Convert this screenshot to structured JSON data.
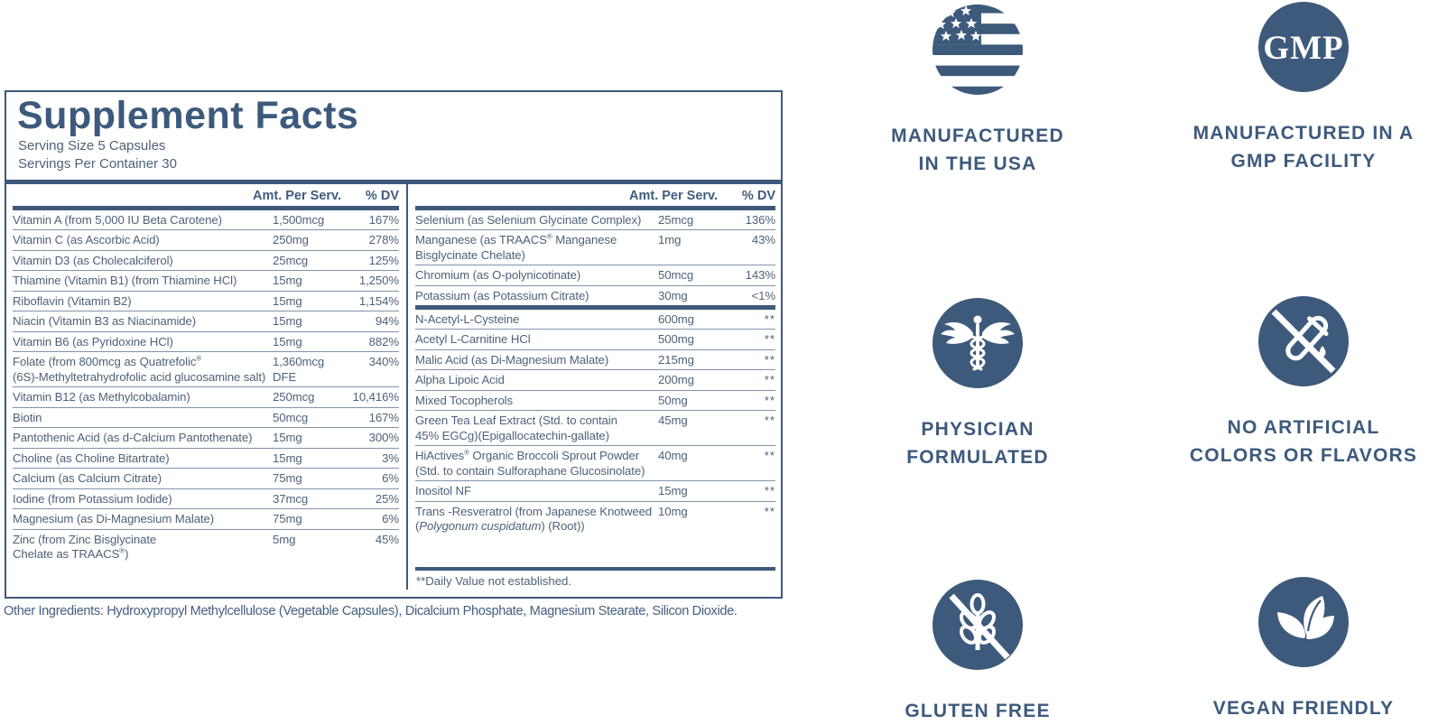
{
  "colors": {
    "navy": "#3d5a7c",
    "row_text": "#4d6278",
    "divider_line": "#8094a8"
  },
  "panel": {
    "title": "Supplement Facts",
    "serving_size": "Serving Size 5 Capsules",
    "servings_per_container": "Servings Per Container 30",
    "col_headers": {
      "amt": "Amt. Per Serv.",
      "dv": "% DV"
    },
    "left_rows": [
      {
        "name": "Vitamin A (from 5,000 IU Beta Carotene)",
        "amt": "1,500mcg",
        "dv": "167%"
      },
      {
        "name": "Vitamin C (as Ascorbic Acid)",
        "amt": "250mg",
        "dv": "278%"
      },
      {
        "name": "Vitamin D3 (as Cholecalciferol)",
        "amt": "25mcg",
        "dv": "125%"
      },
      {
        "name": "Thiamine (Vitamin B1) (from Thiamine HCl)",
        "amt": "15mg",
        "dv": "1,250%"
      },
      {
        "name": "Riboflavin (Vitamin B2)",
        "amt": "15mg",
        "dv": "1,154%"
      },
      {
        "name": "Niacin (Vitamin B3 as Niacinamide)",
        "amt": "15mg",
        "dv": "94%"
      },
      {
        "name": "Vitamin B6 (as Pyridoxine HCl)",
        "amt": "15mg",
        "dv": "882%"
      },
      {
        "name": "Folate (from 800mcg as Quatrefolic®",
        "name2": "(6S)-Methyltetrahydrofolic acid glucosamine salt)",
        "amt": "1,360mcg DFE",
        "dv": "340%"
      },
      {
        "name": "Vitamin B12 (as Methylcobalamin)",
        "amt": "250mcg",
        "dv": "10,416%"
      },
      {
        "name": "Biotin",
        "amt": "50mcg",
        "dv": "167%"
      },
      {
        "name": "Pantothenic Acid (as d-Calcium Pantothenate)",
        "amt": "15mg",
        "dv": "300%"
      },
      {
        "name": "Choline (as Choline Bitartrate)",
        "amt": "15mg",
        "dv": "3%"
      },
      {
        "name": "Calcium (as Calcium Citrate)",
        "amt": "75mg",
        "dv": "6%"
      },
      {
        "name": "Iodine (from Potassium Iodide)",
        "amt": "37mcg",
        "dv": "25%"
      },
      {
        "name": "Magnesium (as Di-Magnesium Malate)",
        "amt": "75mg",
        "dv": "6%"
      },
      {
        "name": "Zinc (from Zinc Bisglycinate",
        "name2": "Chelate as TRAACS®)",
        "amt": "5mg",
        "dv": "45%"
      }
    ],
    "right_rows_1": [
      {
        "name": "Selenium (as Selenium Glycinate Complex)",
        "amt": "25mcg",
        "dv": "136%"
      },
      {
        "name": "Manganese (as TRAACS® Manganese",
        "name2": "Bisglycinate Chelate)",
        "amt": "1mg",
        "dv": "43%"
      },
      {
        "name": "Chromium (as O-polynicotinate)",
        "amt": "50mcg",
        "dv": "143%"
      },
      {
        "name": "Potassium (as Potassium Citrate)",
        "amt": "30mg",
        "dv": "<1%"
      }
    ],
    "right_rows_2": [
      {
        "name": "N-Acetyl-L-Cysteine",
        "amt": "600mg",
        "dv": "**"
      },
      {
        "name": "Acetyl L-Carnitine HCl",
        "amt": "500mg",
        "dv": "**"
      },
      {
        "name": "Malic Acid (as Di-Magnesium Malate)",
        "amt": "215mg",
        "dv": "**"
      },
      {
        "name": "Alpha Lipoic Acid",
        "amt": "200mg",
        "dv": "**"
      },
      {
        "name": "Mixed Tocopherols",
        "amt": "50mg",
        "dv": "**"
      },
      {
        "name": "Green Tea Leaf Extract (Std. to contain",
        "name2": "45% EGCg)(Epigallocatechin-gallate)",
        "amt": "45mg",
        "dv": "**"
      },
      {
        "name": "HiActives® Organic Broccoli Sprout Powder",
        "name2": "(Std. to contain Sulforaphane Glucosinolate)",
        "amt": "40mg",
        "dv": "**"
      },
      {
        "name": "Inositol NF",
        "amt": "15mg",
        "dv": "**"
      },
      {
        "name": "Trans -Resveratrol (from Japanese Knotweed",
        "name2": "(*Polygonum cuspidatum*) (Root))",
        "amt": "10mg",
        "dv": "**"
      }
    ],
    "footnote": "**Daily Value not established.",
    "other_ingredients": "Other Ingredients: Hydroxypropyl Methylcellulose (Vegetable Capsules), Dicalcium Phosphate, Magnesium Stearate, Silicon Dioxide."
  },
  "badges": [
    {
      "icon": "usa-flag-icon",
      "label": "MANUFACTURED\nIN THE USA"
    },
    {
      "icon": "gmp-icon",
      "circle_text": "GMP",
      "label": "MANUFACTURED IN A\nGMP FACILITY"
    },
    {
      "icon": "caduceus-icon",
      "label": "PHYSICIAN\nFORMULATED"
    },
    {
      "icon": "no-artificial-icon",
      "label": "NO ARTIFICIAL\nCOLORS OR FLAVORS"
    },
    {
      "icon": "gluten-free-icon",
      "label": "GLUTEN FREE"
    },
    {
      "icon": "vegan-leaf-icon",
      "label": "VEGAN FRIENDLY"
    }
  ]
}
